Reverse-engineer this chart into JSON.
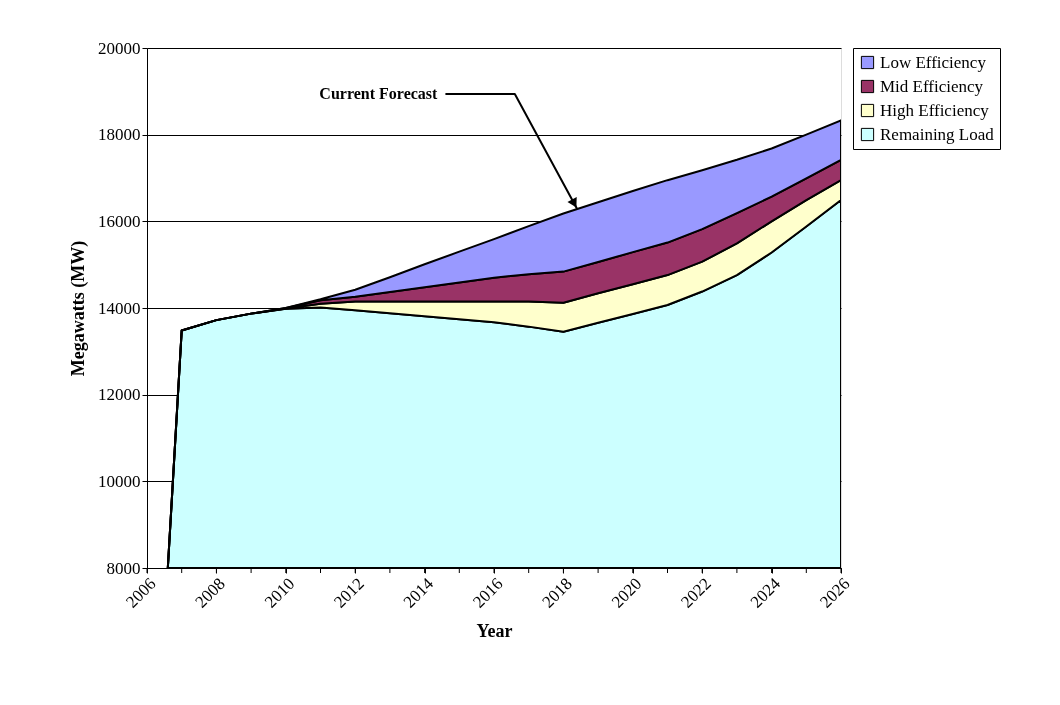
{
  "chart_data": {
    "type": "area",
    "xlabel": "Year",
    "ylabel": "Megawatts (MW)",
    "x": [
      2006.6,
      2007,
      2008,
      2009,
      2010,
      2011,
      2012,
      2013,
      2014,
      2015,
      2016,
      2017,
      2018,
      2019,
      2020,
      2021,
      2022,
      2023,
      2024,
      2025,
      2026
    ],
    "series": [
      {
        "name": "Remaining Load",
        "color": "#ccffff",
        "values": [
          8000,
          13480,
          13720,
          13870,
          13980,
          14010,
          13950,
          13880,
          13810,
          13740,
          13670,
          13570,
          13450,
          13660,
          13860,
          14070,
          14380,
          14760,
          15280,
          15880,
          16490
        ]
      },
      {
        "name": "High Efficiency",
        "color": "#ffffcc",
        "values": [
          8000,
          13480,
          13720,
          13870,
          13990,
          14100,
          14150,
          14150,
          14150,
          14150,
          14150,
          14150,
          14120,
          14340,
          14550,
          14760,
          15070,
          15490,
          16000,
          16490,
          16950
        ]
      },
      {
        "name": "Mid Efficiency",
        "color": "#993366",
        "values": [
          8000,
          13480,
          13720,
          13870,
          14000,
          14180,
          14260,
          14370,
          14480,
          14590,
          14700,
          14780,
          14840,
          15060,
          15290,
          15510,
          15820,
          16190,
          16570,
          16990,
          17420
        ]
      },
      {
        "name": "Low Efficiency",
        "color": "#9999ff",
        "values": [
          8000,
          13480,
          13720,
          13870,
          14000,
          14200,
          14420,
          14710,
          15010,
          15300,
          15590,
          15890,
          16180,
          16440,
          16700,
          16950,
          17180,
          17420,
          17680,
          18000,
          18330
        ]
      }
    ],
    "xlim": [
      2006,
      2026
    ],
    "xticks": [
      2006,
      {
        "value": 2007,
        "label": null
      },
      2008,
      {
        "value": 2009,
        "label": null
      },
      2010,
      {
        "value": 2011,
        "label": null
      },
      2012,
      {
        "value": 2013,
        "label": null
      },
      2014,
      {
        "value": 2015,
        "label": null
      },
      2016,
      {
        "value": 2017,
        "label": null
      },
      2018,
      {
        "value": 2019,
        "label": null
      },
      2020,
      {
        "value": 2021,
        "label": null
      },
      2022,
      {
        "value": 2023,
        "label": null
      },
      2024,
      {
        "value": 2025,
        "label": null
      },
      2026
    ],
    "ylim": [
      8000,
      20000
    ],
    "yticks": [
      8000,
      10000,
      12000,
      14000,
      16000,
      18000,
      20000
    ],
    "grid": "y",
    "legend": "right",
    "annotations": [
      {
        "text": "Current Forecast",
        "x": 2018.4,
        "y": 16280
      }
    ]
  }
}
